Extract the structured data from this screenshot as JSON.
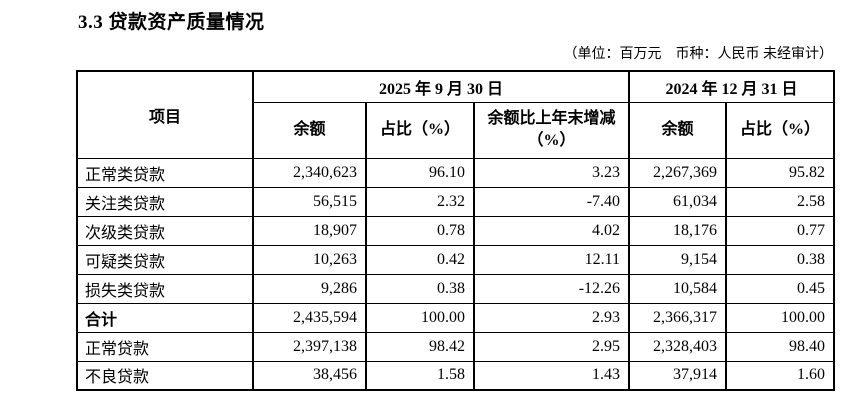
{
  "page": {
    "title": "3.3 贷款资产质量情况",
    "unit_note": "（单位：百万元　币种：人民币 未经审计）"
  },
  "table": {
    "headers": {
      "item": "项目",
      "period_2025": "2025 年 9 月 30 日",
      "period_2024": "2024 年 12 月 31 日",
      "balance_2025": "余额",
      "ratio_2025": "占比（%）",
      "change_2025": "余额比上年末增减（%）",
      "balance_2024": "余额",
      "ratio_2024": "占比（%）"
    },
    "rows": [
      {
        "label": "正常类贷款",
        "balance_2025": "2,340,623",
        "ratio_2025": "96.10",
        "change": "3.23",
        "balance_2024": "2,267,369",
        "ratio_2024": "95.82"
      },
      {
        "label": "关注类贷款",
        "balance_2025": "56,515",
        "ratio_2025": "2.32",
        "change": "-7.40",
        "balance_2024": "61,034",
        "ratio_2024": "2.58"
      },
      {
        "label": "次级类贷款",
        "balance_2025": "18,907",
        "ratio_2025": "0.78",
        "change": "4.02",
        "balance_2024": "18,176",
        "ratio_2024": "0.77"
      },
      {
        "label": "可疑类贷款",
        "balance_2025": "10,263",
        "ratio_2025": "0.42",
        "change": "12.11",
        "balance_2024": "9,154",
        "ratio_2024": "0.38"
      },
      {
        "label": "损失类贷款",
        "balance_2025": "9,286",
        "ratio_2025": "0.38",
        "change": "-12.26",
        "balance_2024": "10,584",
        "ratio_2024": "0.45"
      },
      {
        "label": "合计",
        "balance_2025": "2,435,594",
        "ratio_2025": "100.00",
        "change": "2.93",
        "balance_2024": "2,366,317",
        "ratio_2024": "100.00"
      },
      {
        "label": "正常贷款",
        "balance_2025": "2,397,138",
        "ratio_2025": "98.42",
        "change": "2.95",
        "balance_2024": "2,328,403",
        "ratio_2024": "98.40"
      },
      {
        "label": "不良贷款",
        "balance_2025": "38,456",
        "ratio_2025": "1.58",
        "change": "1.43",
        "balance_2024": "37,914",
        "ratio_2024": "1.60"
      }
    ]
  }
}
